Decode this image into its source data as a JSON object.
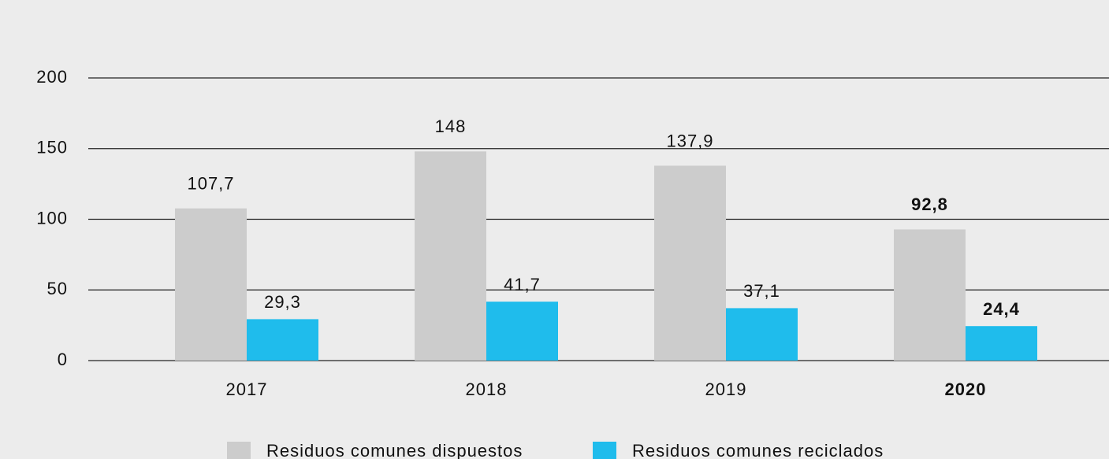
{
  "chart_data": {
    "type": "bar",
    "categories": [
      "2017",
      "2018",
      "2019",
      "2020"
    ],
    "series": [
      {
        "name": "Residuos comunes dispuestos",
        "color": "#cccccc",
        "values": [
          107.7,
          148,
          137.9,
          92.8
        ],
        "value_labels": [
          "107,7",
          "148",
          "137,9",
          "92,8"
        ]
      },
      {
        "name": "Residuos comunes reciclados",
        "color": "#1fbcec",
        "values": [
          29.3,
          41.7,
          37.1,
          24.4
        ],
        "value_labels": [
          "29,3",
          "41,7",
          "37,1",
          "24,4"
        ]
      }
    ],
    "ylim": [
      0,
      200
    ],
    "yticks": [
      0,
      50,
      100,
      150,
      200
    ],
    "grid": true,
    "highlight_index": 3,
    "legend": "bottom"
  }
}
